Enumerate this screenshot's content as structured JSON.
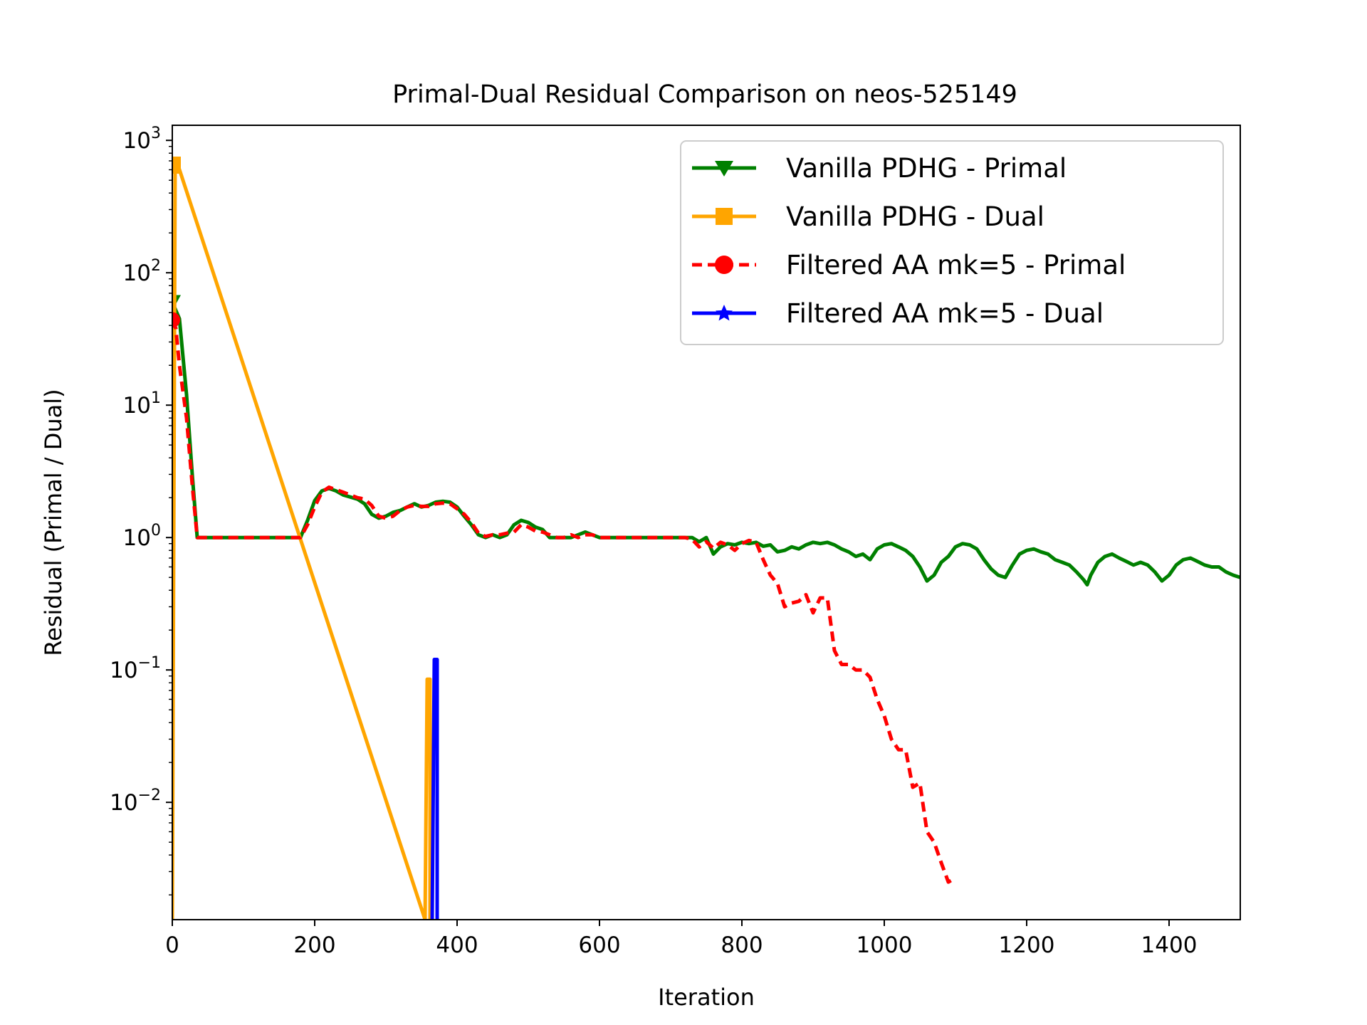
{
  "chart_data": {
    "type": "line",
    "title": "Primal-Dual Residual Comparison on neos-525149",
    "xlabel": "Iteration",
    "ylabel": "Residual (Primal / Dual)",
    "xlim": [
      0,
      1500
    ],
    "ylim": [
      0.0013,
      1300
    ],
    "yscale": "log",
    "grid": false,
    "legend_position": "top-right",
    "xticks": [
      0,
      200,
      400,
      600,
      800,
      1000,
      1200,
      1400
    ],
    "yticks": [
      {
        "value": 1000,
        "base": "10",
        "exp": "3"
      },
      {
        "value": 100,
        "base": "10",
        "exp": "2"
      },
      {
        "value": 10,
        "base": "10",
        "exp": "1"
      },
      {
        "value": 1,
        "base": "10",
        "exp": "0"
      },
      {
        "value": 0.1,
        "base": "10",
        "exp": "−1"
      },
      {
        "value": 0.01,
        "base": "10",
        "exp": "−2"
      }
    ],
    "series": [
      {
        "name": "Vanilla PDHG - Primal",
        "color": "#008000",
        "style": "solid",
        "marker": "triangle-down",
        "points": [
          [
            0,
            60
          ],
          [
            10,
            45
          ],
          [
            20,
            12
          ],
          [
            28,
            3
          ],
          [
            35,
            1.0
          ],
          [
            100,
            1.0
          ],
          [
            180,
            1.0
          ],
          [
            190,
            1.35
          ],
          [
            200,
            1.9
          ],
          [
            210,
            2.25
          ],
          [
            220,
            2.35
          ],
          [
            230,
            2.25
          ],
          [
            240,
            2.1
          ],
          [
            260,
            1.95
          ],
          [
            270,
            1.8
          ],
          [
            280,
            1.5
          ],
          [
            290,
            1.4
          ],
          [
            300,
            1.45
          ],
          [
            310,
            1.55
          ],
          [
            320,
            1.6
          ],
          [
            330,
            1.7
          ],
          [
            340,
            1.8
          ],
          [
            350,
            1.7
          ],
          [
            360,
            1.75
          ],
          [
            370,
            1.85
          ],
          [
            380,
            1.88
          ],
          [
            390,
            1.85
          ],
          [
            400,
            1.7
          ],
          [
            410,
            1.45
          ],
          [
            420,
            1.25
          ],
          [
            430,
            1.05
          ],
          [
            440,
            1.0
          ],
          [
            450,
            1.05
          ],
          [
            460,
            1.0
          ],
          [
            470,
            1.05
          ],
          [
            480,
            1.25
          ],
          [
            490,
            1.35
          ],
          [
            500,
            1.3
          ],
          [
            510,
            1.2
          ],
          [
            520,
            1.15
          ],
          [
            530,
            1.0
          ],
          [
            540,
            1.0
          ],
          [
            550,
            1.0
          ],
          [
            560,
            1.0
          ],
          [
            570,
            1.05
          ],
          [
            580,
            1.1
          ],
          [
            590,
            1.05
          ],
          [
            600,
            1.0
          ],
          [
            700,
            1.0
          ],
          [
            720,
            1.0
          ],
          [
            730,
            1.0
          ],
          [
            740,
            0.93
          ],
          [
            750,
            1.0
          ],
          [
            760,
            0.75
          ],
          [
            770,
            0.85
          ],
          [
            780,
            0.9
          ],
          [
            790,
            0.88
          ],
          [
            800,
            0.92
          ],
          [
            810,
            0.9
          ],
          [
            820,
            0.92
          ],
          [
            830,
            0.86
          ],
          [
            840,
            0.88
          ],
          [
            850,
            0.78
          ],
          [
            860,
            0.8
          ],
          [
            870,
            0.85
          ],
          [
            880,
            0.82
          ],
          [
            890,
            0.88
          ],
          [
            900,
            0.92
          ],
          [
            910,
            0.9
          ],
          [
            920,
            0.92
          ],
          [
            930,
            0.88
          ],
          [
            940,
            0.82
          ],
          [
            950,
            0.78
          ],
          [
            960,
            0.72
          ],
          [
            970,
            0.75
          ],
          [
            980,
            0.68
          ],
          [
            990,
            0.82
          ],
          [
            1000,
            0.88
          ],
          [
            1010,
            0.9
          ],
          [
            1020,
            0.85
          ],
          [
            1030,
            0.8
          ],
          [
            1040,
            0.72
          ],
          [
            1050,
            0.6
          ],
          [
            1060,
            0.47
          ],
          [
            1070,
            0.52
          ],
          [
            1080,
            0.65
          ],
          [
            1090,
            0.72
          ],
          [
            1100,
            0.85
          ],
          [
            1110,
            0.9
          ],
          [
            1120,
            0.88
          ],
          [
            1130,
            0.82
          ],
          [
            1140,
            0.68
          ],
          [
            1150,
            0.58
          ],
          [
            1160,
            0.52
          ],
          [
            1170,
            0.5
          ],
          [
            1180,
            0.62
          ],
          [
            1190,
            0.75
          ],
          [
            1200,
            0.8
          ],
          [
            1210,
            0.82
          ],
          [
            1220,
            0.78
          ],
          [
            1230,
            0.75
          ],
          [
            1240,
            0.68
          ],
          [
            1250,
            0.65
          ],
          [
            1260,
            0.62
          ],
          [
            1270,
            0.55
          ],
          [
            1280,
            0.48
          ],
          [
            1285,
            0.44
          ],
          [
            1290,
            0.52
          ],
          [
            1300,
            0.65
          ],
          [
            1310,
            0.72
          ],
          [
            1320,
            0.75
          ],
          [
            1330,
            0.7
          ],
          [
            1340,
            0.66
          ],
          [
            1350,
            0.62
          ],
          [
            1360,
            0.65
          ],
          [
            1370,
            0.62
          ],
          [
            1380,
            0.55
          ],
          [
            1390,
            0.47
          ],
          [
            1400,
            0.52
          ],
          [
            1410,
            0.62
          ],
          [
            1420,
            0.68
          ],
          [
            1430,
            0.7
          ],
          [
            1440,
            0.66
          ],
          [
            1450,
            0.62
          ],
          [
            1460,
            0.6
          ],
          [
            1470,
            0.6
          ],
          [
            1480,
            0.55
          ],
          [
            1490,
            0.52
          ],
          [
            1500,
            0.5
          ]
        ]
      },
      {
        "name": "Vanilla PDHG - Dual",
        "color": "#FFA500",
        "style": "solid",
        "marker": "square",
        "points": [
          [
            0,
            0.0013
          ],
          [
            4,
            650
          ],
          [
            8,
            650
          ],
          [
            355,
            0.0013
          ],
          [
            358,
            0.085
          ],
          [
            362,
            0.085
          ],
          [
            362,
            0.0013
          ]
        ]
      },
      {
        "name": "Filtered AA mk=5 - Primal",
        "color": "#FF0000",
        "style": "dashed",
        "marker": "circle",
        "points": [
          [
            0,
            44
          ],
          [
            5,
            38
          ],
          [
            10,
            20
          ],
          [
            20,
            8
          ],
          [
            28,
            2.5
          ],
          [
            35,
            1.0
          ],
          [
            100,
            1.0
          ],
          [
            180,
            1.0
          ],
          [
            190,
            1.25
          ],
          [
            200,
            1.7
          ],
          [
            210,
            2.2
          ],
          [
            220,
            2.4
          ],
          [
            230,
            2.3
          ],
          [
            240,
            2.2
          ],
          [
            260,
            2.0
          ],
          [
            270,
            1.95
          ],
          [
            280,
            1.75
          ],
          [
            290,
            1.45
          ],
          [
            300,
            1.4
          ],
          [
            310,
            1.45
          ],
          [
            320,
            1.6
          ],
          [
            330,
            1.7
          ],
          [
            340,
            1.75
          ],
          [
            350,
            1.72
          ],
          [
            360,
            1.72
          ],
          [
            370,
            1.8
          ],
          [
            380,
            1.82
          ],
          [
            390,
            1.8
          ],
          [
            400,
            1.65
          ],
          [
            410,
            1.5
          ],
          [
            420,
            1.3
          ],
          [
            430,
            1.08
          ],
          [
            440,
            1.02
          ],
          [
            450,
            1.05
          ],
          [
            460,
            1.05
          ],
          [
            470,
            1.08
          ],
          [
            480,
            1.1
          ],
          [
            490,
            1.25
          ],
          [
            500,
            1.2
          ],
          [
            510,
            1.12
          ],
          [
            520,
            1.1
          ],
          [
            530,
            1.05
          ],
          [
            540,
            1.0
          ],
          [
            550,
            1.0
          ],
          [
            560,
            1.05
          ],
          [
            570,
            1.0
          ],
          [
            580,
            1.05
          ],
          [
            590,
            1.05
          ],
          [
            600,
            1.0
          ],
          [
            700,
            1.0
          ],
          [
            720,
            1.0
          ],
          [
            730,
            0.97
          ],
          [
            740,
            0.85
          ],
          [
            750,
            0.93
          ],
          [
            760,
            0.83
          ],
          [
            770,
            0.92
          ],
          [
            780,
            0.88
          ],
          [
            790,
            0.8
          ],
          [
            800,
            0.9
          ],
          [
            810,
            0.95
          ],
          [
            820,
            0.92
          ],
          [
            830,
            0.68
          ],
          [
            840,
            0.52
          ],
          [
            850,
            0.45
          ],
          [
            860,
            0.3
          ],
          [
            870,
            0.32
          ],
          [
            880,
            0.33
          ],
          [
            890,
            0.37
          ],
          [
            900,
            0.27
          ],
          [
            910,
            0.35
          ],
          [
            920,
            0.35
          ],
          [
            930,
            0.14
          ],
          [
            940,
            0.11
          ],
          [
            950,
            0.11
          ],
          [
            960,
            0.1
          ],
          [
            970,
            0.1
          ],
          [
            980,
            0.088
          ],
          [
            990,
            0.06
          ],
          [
            1000,
            0.045
          ],
          [
            1010,
            0.03
          ],
          [
            1020,
            0.025
          ],
          [
            1030,
            0.025
          ],
          [
            1040,
            0.013
          ],
          [
            1050,
            0.014
          ],
          [
            1060,
            0.006
          ],
          [
            1070,
            0.005
          ],
          [
            1080,
            0.0035
          ],
          [
            1090,
            0.0025
          ],
          [
            1100,
            0.0027
          ]
        ]
      },
      {
        "name": "Filtered AA mk=5 - Dual",
        "color": "#0000FF",
        "style": "solid",
        "marker": "star",
        "points": [
          [
            365,
            0.0013
          ],
          [
            368,
            0.12
          ],
          [
            372,
            0.12
          ],
          [
            372,
            0.0013
          ]
        ]
      }
    ]
  }
}
